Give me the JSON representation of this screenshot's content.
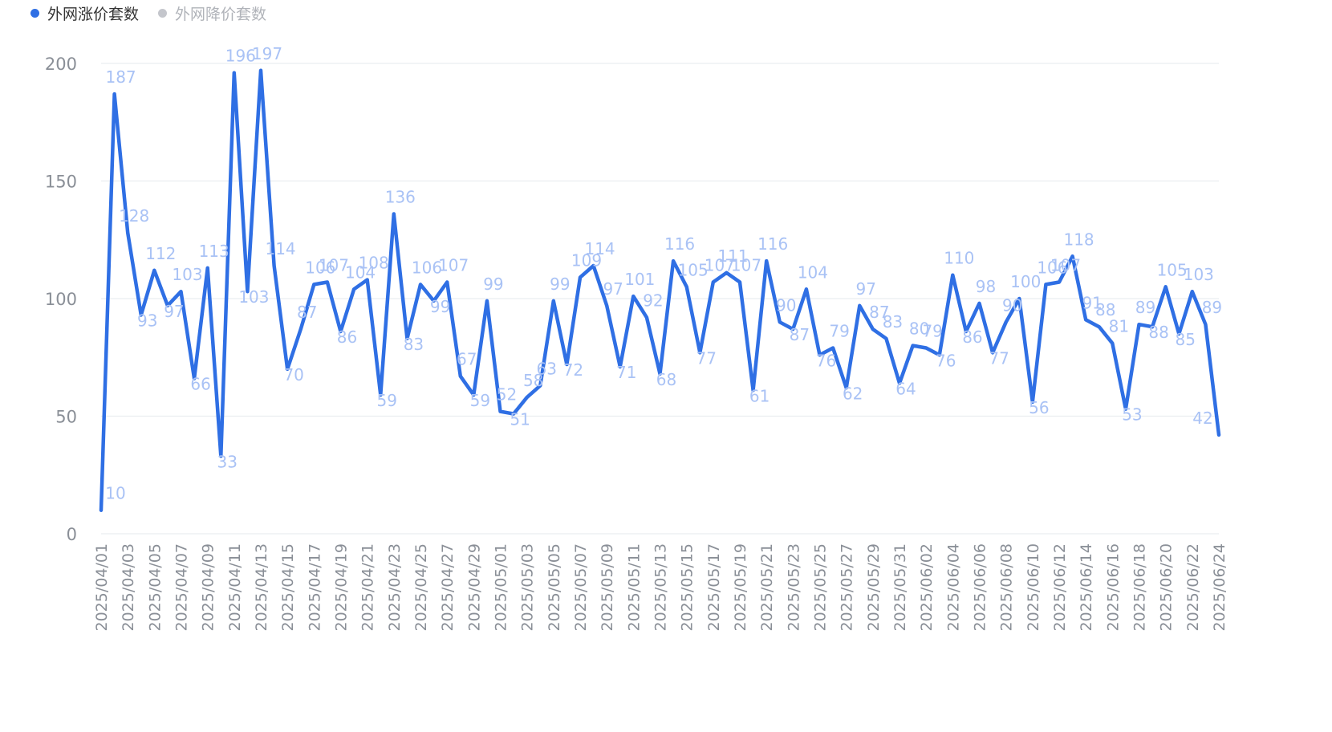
{
  "colors": {
    "series_active": "#2f6fe4",
    "series_inactive": "#c4c6cc",
    "data_label": "#a9c2f5",
    "grid": "#ebedf0",
    "axis_text": "#8a8f97"
  },
  "legend": {
    "items": [
      {
        "label": "外网涨价套数",
        "state": "active"
      },
      {
        "label": "外网降价套数",
        "state": "inactive"
      }
    ]
  },
  "chart_data": {
    "type": "line",
    "title": "",
    "xlabel": "",
    "ylabel": "",
    "ylim": [
      0,
      200
    ],
    "yticks": [
      0,
      50,
      100,
      150,
      200
    ],
    "grid": true,
    "legend_position": "top-left",
    "categories": [
      "2025/04/01",
      "2025/04/02",
      "2025/04/03",
      "2025/04/04",
      "2025/04/05",
      "2025/04/06",
      "2025/04/07",
      "2025/04/08",
      "2025/04/09",
      "2025/04/10",
      "2025/04/11",
      "2025/04/12",
      "2025/04/13",
      "2025/04/14",
      "2025/04/15",
      "2025/04/16",
      "2025/04/17",
      "2025/04/18",
      "2025/04/19",
      "2025/04/20",
      "2025/04/21",
      "2025/04/22",
      "2025/04/23",
      "2025/04/24",
      "2025/04/25",
      "2025/04/26",
      "2025/04/27",
      "2025/04/28",
      "2025/04/29",
      "2025/04/30",
      "2025/05/01",
      "2025/05/02",
      "2025/05/03",
      "2025/05/04",
      "2025/05/05",
      "2025/05/06",
      "2025/05/07",
      "2025/05/08",
      "2025/05/09",
      "2025/05/10",
      "2025/05/11",
      "2025/05/12",
      "2025/05/13",
      "2025/05/14",
      "2025/05/15",
      "2025/05/16",
      "2025/05/17",
      "2025/05/18",
      "2025/05/19",
      "2025/05/20",
      "2025/05/21",
      "2025/05/22",
      "2025/05/23",
      "2025/05/24",
      "2025/05/25",
      "2025/05/26",
      "2025/05/27",
      "2025/05/28",
      "2025/05/29",
      "2025/05/30",
      "2025/05/31",
      "2025/06/01",
      "2025/06/02",
      "2025/06/03",
      "2025/06/04",
      "2025/06/05",
      "2025/06/06",
      "2025/06/07",
      "2025/06/08",
      "2025/06/09",
      "2025/06/10",
      "2025/06/11",
      "2025/06/12",
      "2025/06/13",
      "2025/06/14",
      "2025/06/15",
      "2025/06/16",
      "2025/06/17",
      "2025/06/18",
      "2025/06/19",
      "2025/06/20",
      "2025/06/21",
      "2025/06/22",
      "2025/06/23",
      "2025/06/24"
    ],
    "x_tick_labels": [
      "2025/04/01",
      "2025/04/03",
      "2025/04/05",
      "2025/04/07",
      "2025/04/09",
      "2025/04/11",
      "2025/04/13",
      "2025/04/15",
      "2025/04/17",
      "2025/04/19",
      "2025/04/21",
      "2025/04/23",
      "2025/04/25",
      "2025/04/27",
      "2025/04/29",
      "2025/05/01",
      "2025/05/03",
      "2025/05/05",
      "2025/05/07",
      "2025/05/09",
      "2025/05/11",
      "2025/05/13",
      "2025/05/15",
      "2025/05/17",
      "2025/05/19",
      "2025/05/21",
      "2025/05/23",
      "2025/05/25",
      "2025/05/27",
      "2025/05/29",
      "2025/05/31",
      "2025/06/02",
      "2025/06/04",
      "2025/06/06",
      "2025/06/08",
      "2025/06/10",
      "2025/06/12",
      "2025/06/14",
      "2025/06/16",
      "2025/06/18",
      "2025/06/20",
      "2025/06/22",
      "2025/06/24"
    ],
    "series": [
      {
        "name": "外网涨价套数",
        "values": [
          10,
          187,
          128,
          93,
          112,
          97,
          103,
          66,
          113,
          33,
          196,
          103,
          197,
          114,
          70,
          87,
          106,
          107,
          86,
          104,
          108,
          59,
          136,
          83,
          106,
          99,
          107,
          67,
          59,
          99,
          52,
          51,
          58,
          63,
          99,
          72,
          109,
          114,
          97,
          71,
          101,
          92,
          68,
          116,
          105,
          77,
          107,
          111,
          107,
          61,
          116,
          90,
          87,
          104,
          76,
          79,
          62,
          97,
          87,
          83,
          64,
          80,
          79,
          76,
          110,
          86,
          98,
          77,
          90,
          100,
          56,
          106,
          107,
          118,
          91,
          88,
          81,
          53,
          89,
          88,
          105,
          85,
          103,
          89,
          42
        ]
      }
    ]
  }
}
